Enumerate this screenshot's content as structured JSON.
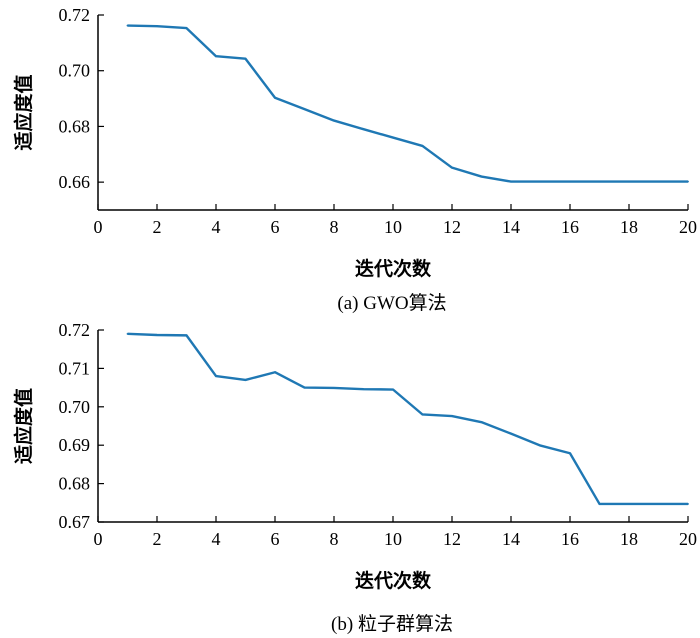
{
  "chart_data": [
    {
      "type": "line",
      "caption": "(a) GWO算法",
      "xlabel": "迭代次数",
      "ylabel": "适应度值",
      "xlim": [
        0,
        20
      ],
      "ylim": [
        0.65,
        0.72
      ],
      "xticks": [
        0,
        2,
        4,
        6,
        8,
        10,
        12,
        14,
        16,
        18,
        20
      ],
      "yticks": [
        0.66,
        0.68,
        0.7,
        0.72
      ],
      "ytick_labels": [
        "0.66",
        "0.68",
        "0.70",
        "0.72"
      ],
      "grid": false,
      "color": "#1f78b4",
      "series": [
        {
          "x": [
            1,
            2,
            3,
            4,
            5,
            6,
            7,
            8,
            9,
            10,
            11,
            12,
            13,
            14,
            15,
            16,
            17,
            18,
            19,
            20
          ],
          "values": [
            0.7162,
            0.716,
            0.7153,
            0.7052,
            0.7043,
            0.6903,
            0.6862,
            0.6821,
            0.679,
            0.676,
            0.673,
            0.6652,
            0.662,
            0.6602,
            0.6602,
            0.6602,
            0.6602,
            0.6602,
            0.6602,
            0.6602
          ]
        }
      ]
    },
    {
      "type": "line",
      "caption": "(b) 粒子群算法",
      "xlabel": "迭代次数",
      "ylabel": "适应度值",
      "xlim": [
        0,
        20
      ],
      "ylim": [
        0.67,
        0.72
      ],
      "xticks": [
        0,
        2,
        4,
        6,
        8,
        10,
        12,
        14,
        16,
        18,
        20
      ],
      "yticks": [
        0.67,
        0.68,
        0.69,
        0.7,
        0.71,
        0.72
      ],
      "ytick_labels": [
        "0.67",
        "0.68",
        "0.69",
        "0.70",
        "0.71",
        "0.72"
      ],
      "grid": false,
      "color": "#1f78b4",
      "series": [
        {
          "x": [
            1,
            2,
            3,
            4,
            5,
            6,
            7,
            8,
            9,
            10,
            11,
            12,
            13,
            14,
            15,
            16,
            17,
            18,
            19,
            20
          ],
          "values": [
            0.719,
            0.7187,
            0.7186,
            0.708,
            0.707,
            0.709,
            0.705,
            0.7049,
            0.7046,
            0.7045,
            0.698,
            0.6976,
            0.696,
            0.693,
            0.6899,
            0.6879,
            0.6747,
            0.6747,
            0.6747,
            0.6747
          ]
        }
      ]
    }
  ]
}
